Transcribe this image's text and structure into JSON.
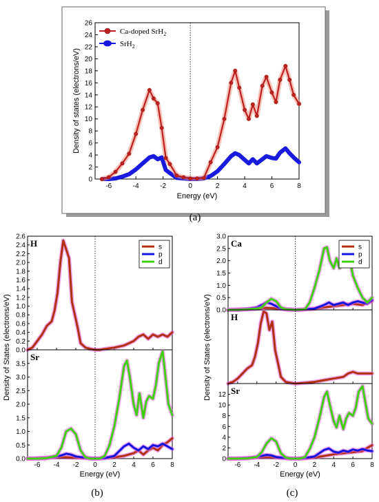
{
  "captions": {
    "a": "(a)",
    "b": "(b)",
    "c": "(c)"
  },
  "colors": {
    "ca_doped": "#c0201e",
    "ca_doped_halo": "#f09080",
    "srh2": "#1a1adf",
    "s": "#b03010",
    "p": "#1414e0",
    "d": "#40d010",
    "halo": "#e060e0"
  },
  "chart_data": [
    {
      "id": "a",
      "type": "line",
      "xlabel": "Energy (eV)",
      "ylabel": "Density of states (electrons/eV)",
      "xlim": [
        -7,
        8
      ],
      "ylim": [
        0,
        26
      ],
      "xticks": [
        -6,
        -4,
        -2,
        0,
        2,
        4,
        6,
        8
      ],
      "yticks": [
        0,
        2,
        4,
        6,
        8,
        10,
        12,
        14,
        16,
        18,
        20,
        22,
        24,
        26
      ],
      "fermi_line": 0,
      "legend_position": "top-left",
      "series": [
        {
          "name": "Ca-doped SrH",
          "name_sub": "2",
          "color_key": "ca_doped",
          "x": [
            -6.5,
            -6,
            -5.5,
            -5,
            -4.5,
            -4,
            -3.5,
            -3,
            -2.7,
            -2.4,
            -2.1,
            -1.8,
            -1.5,
            -1,
            -0.5,
            0,
            0.5,
            1,
            1.5,
            2,
            2.5,
            3,
            3.3,
            3.6,
            4,
            4.3,
            4.6,
            4.9,
            5.3,
            5.6,
            6,
            6.3,
            6.6,
            7,
            7.3,
            7.6,
            8
          ],
          "y": [
            0,
            0.3,
            1.2,
            2.6,
            4.2,
            7.5,
            11.5,
            14.8,
            13.4,
            12.6,
            8.5,
            3.5,
            2.5,
            0.6,
            0.3,
            0.1,
            0.1,
            0.2,
            2.8,
            5.3,
            10,
            16,
            18,
            15.2,
            11.5,
            10,
            12.4,
            10.5,
            15.5,
            17,
            14.4,
            12.8,
            16.5,
            18.8,
            16.5,
            14,
            12.5
          ]
        },
        {
          "name": "SrH",
          "name_sub": "2",
          "color_key": "srh2",
          "x": [
            -6.5,
            -6,
            -5.5,
            -5,
            -4.5,
            -4,
            -3.5,
            -3,
            -2.7,
            -2.4,
            -2.1,
            -1.8,
            -1.5,
            -1,
            -0.5,
            0,
            0.5,
            1,
            1.5,
            2,
            2.5,
            3,
            3.3,
            3.6,
            4,
            4.3,
            4.6,
            4.9,
            5.3,
            5.6,
            6,
            6.3,
            6.6,
            7,
            7.3,
            7.6,
            8
          ],
          "y": [
            0,
            0,
            0.1,
            0.4,
            0.8,
            1.6,
            2.6,
            3.6,
            3.8,
            3.3,
            3.6,
            1.5,
            1,
            0.2,
            0.1,
            0,
            0,
            0.1,
            0.5,
            1.3,
            2.5,
            3.8,
            4.3,
            4,
            3.2,
            2.6,
            3.3,
            2.6,
            3.3,
            3.8,
            3.5,
            3.4,
            4.4,
            5.1,
            4.3,
            3.6,
            2.8
          ]
        }
      ]
    },
    {
      "id": "b",
      "type": "line",
      "xlabel": "Energy (eV)",
      "ylabel": "Density of States (electrons/eV)",
      "xlim": [
        -7,
        8
      ],
      "xticks": [
        -6,
        -4,
        -2,
        0,
        2,
        4,
        6,
        8
      ],
      "fermi_line": 0,
      "legend_position": "top-right",
      "legend": [
        "s",
        "p",
        "d"
      ],
      "subpanels": [
        {
          "element": "H",
          "ylim": [
            0,
            2.6
          ],
          "yticks": [
            0,
            0.2,
            0.4,
            0.6,
            0.8,
            1.0,
            1.2,
            1.4,
            1.6,
            1.8,
            2.0,
            2.2,
            2.4,
            2.6
          ],
          "series": [
            {
              "name": "s",
              "color_key": "s",
              "x": [
                -7,
                -6.5,
                -6,
                -5.5,
                -5,
                -4.5,
                -4.2,
                -3.9,
                -3.6,
                -3.3,
                -3,
                -2.7,
                -2.4,
                -2.1,
                -1.8,
                -1.5,
                -1,
                -0.5,
                0,
                0.5,
                1,
                2,
                3,
                4,
                4.5,
                5,
                5.5,
                6,
                6.5,
                7,
                7.5,
                8
              ],
              "y": [
                0,
                0.05,
                0.2,
                0.35,
                0.55,
                0.65,
                0.9,
                1.3,
                2.0,
                2.5,
                2.3,
                2.1,
                1.1,
                0.8,
                0.5,
                0.15,
                0.05,
                0.02,
                0,
                0,
                0.02,
                0.05,
                0.1,
                0.2,
                0.3,
                0.35,
                0.25,
                0.35,
                0.3,
                0.35,
                0.3,
                0.4
              ]
            }
          ]
        },
        {
          "element": "Sr",
          "ylim": [
            0,
            4.0
          ],
          "yticks": [
            0,
            0.5,
            1.0,
            1.5,
            2.0,
            2.5,
            3.0,
            3.5
          ],
          "series": [
            {
              "name": "s",
              "color_key": "s",
              "x": [
                -7,
                -6,
                -5,
                -4,
                -3,
                -2,
                -1,
                0,
                1,
                2,
                3,
                4,
                4.5,
                5,
                5.5,
                6,
                6.5,
                7,
                7.5,
                8
              ],
              "y": [
                0,
                0.02,
                0.03,
                0.05,
                0.05,
                0.03,
                0.02,
                0,
                0.02,
                0.05,
                0.1,
                0.2,
                0.3,
                0.15,
                0.3,
                0.4,
                0.3,
                0.5,
                0.6,
                0.75
              ]
            },
            {
              "name": "p",
              "color_key": "p",
              "x": [
                -7,
                -6,
                -5,
                -4,
                -3.5,
                -3,
                -2.5,
                -2,
                -1,
                0,
                1,
                2,
                3,
                3.5,
                4,
                4.5,
                5,
                5.5,
                6,
                6.5,
                7,
                7.5,
                8
              ],
              "y": [
                0,
                0,
                0.02,
                0.08,
                0.12,
                0.18,
                0.15,
                0.08,
                0.03,
                0,
                0.02,
                0.1,
                0.45,
                0.55,
                0.4,
                0.3,
                0.45,
                0.35,
                0.5,
                0.45,
                0.55,
                0.45,
                0.35
              ]
            },
            {
              "name": "d",
              "color_key": "d",
              "x": [
                -7,
                -6,
                -5,
                -4,
                -3.5,
                -3,
                -2.5,
                -2,
                -1.5,
                -1,
                -0.5,
                0,
                0.5,
                1,
                1.5,
                2,
                2.5,
                3,
                3.3,
                3.6,
                4,
                4.3,
                4.6,
                5,
                5.3,
                5.6,
                6,
                6.3,
                6.6,
                7,
                7.3,
                7.6,
                8
              ],
              "y": [
                0,
                0,
                0.02,
                0.1,
                0.4,
                1.0,
                1.1,
                0.9,
                0.3,
                0.05,
                0,
                0,
                0,
                0.1,
                0.5,
                1.2,
                2.2,
                3.4,
                3.6,
                3.0,
                2.0,
                1.6,
                2.4,
                1.5,
                2.1,
                2.3,
                2.2,
                2.7,
                3.5,
                3.95,
                3.0,
                2.0,
                1.6
              ]
            }
          ]
        }
      ]
    },
    {
      "id": "c",
      "type": "line",
      "xlabel": "Energy (eV)",
      "ylabel": "Density of States (electrons/eV)",
      "xlim": [
        -7,
        8
      ],
      "xticks": [
        -6,
        -4,
        -2,
        0,
        2,
        4,
        6,
        8
      ],
      "fermi_line": 0,
      "legend_position": "top-right",
      "legend": [
        "s",
        "p",
        "d"
      ],
      "subpanels": [
        {
          "element": "Ca",
          "ylim": [
            0,
            3.0
          ],
          "yticks": [
            0,
            0.5,
            1.0,
            1.5,
            2.0,
            2.5,
            3.0
          ],
          "series": [
            {
              "name": "s",
              "color_key": "s",
              "x": [
                -7,
                -6,
                -5,
                -4,
                -3,
                -2,
                -1,
                0,
                1,
                2,
                3,
                4,
                5,
                6,
                7,
                7.5,
                8
              ],
              "y": [
                0,
                0.02,
                0.03,
                0.05,
                0.08,
                0.06,
                0.03,
                0,
                0.02,
                0.05,
                0.1,
                0.15,
                0.2,
                0.25,
                0.2,
                0.3,
                0.35
              ]
            },
            {
              "name": "p",
              "color_key": "p",
              "x": [
                -7,
                -6,
                -5,
                -4,
                -3.5,
                -3,
                -2.5,
                -2,
                -1.5,
                -1,
                0,
                1,
                2,
                3,
                3.5,
                4,
                4.5,
                5,
                5.5,
                6,
                6.5,
                7,
                7.5,
                8
              ],
              "y": [
                0,
                0,
                0.03,
                0.1,
                0.2,
                0.3,
                0.25,
                0.15,
                0.05,
                0.02,
                0,
                0.02,
                0.05,
                0.2,
                0.3,
                0.2,
                0.25,
                0.3,
                0.2,
                0.3,
                0.35,
                0.3,
                0.25,
                0.4
              ]
            },
            {
              "name": "d",
              "color_key": "d",
              "x": [
                -7,
                -6,
                -5,
                -4,
                -3.5,
                -3,
                -2.5,
                -2,
                -1.5,
                -1,
                0,
                1,
                1.5,
                2,
                2.5,
                3,
                3.3,
                3.6,
                4,
                4.3,
                4.6,
                5,
                5.3,
                5.6,
                6,
                6.5,
                7,
                7.5,
                8
              ],
              "y": [
                0,
                0,
                0.02,
                0.05,
                0.1,
                0.3,
                0.45,
                0.35,
                0.1,
                0.02,
                0,
                0.02,
                0.3,
                0.9,
                1.6,
                2.5,
                2.55,
                2.0,
                1.7,
                2.1,
                1.7,
                1.9,
                2.3,
                2.2,
                1.4,
                0.9,
                0.5,
                0.3,
                0.5
              ]
            }
          ]
        },
        {
          "element": "H",
          "ylim": [
            0,
            2.2
          ],
          "series": [
            {
              "name": "s",
              "color_key": "s",
              "x": [
                -7,
                -6.5,
                -6,
                -5.5,
                -5,
                -4.5,
                -4.2,
                -3.9,
                -3.6,
                -3.3,
                -3,
                -2.7,
                -2.4,
                -2.1,
                -1.8,
                -1.5,
                -1,
                -0.5,
                0,
                1,
                2,
                3,
                4,
                5,
                5.5,
                6,
                6.5,
                7,
                7.5,
                8
              ],
              "y": [
                0,
                0.05,
                0.15,
                0.3,
                0.45,
                0.55,
                0.8,
                1.2,
                1.8,
                2.15,
                2.1,
                1.6,
                1.85,
                1.0,
                0.6,
                0.2,
                0.05,
                0.02,
                0,
                0.02,
                0.05,
                0.1,
                0.15,
                0.2,
                0.3,
                0.35,
                0.3,
                0.3,
                0.3,
                0.3
              ]
            }
          ]
        },
        {
          "element": "Sr",
          "ylim": [
            0,
            14
          ],
          "yticks": [
            0,
            2,
            4,
            6,
            8,
            10,
            12
          ],
          "series": [
            {
              "name": "s",
              "color_key": "s",
              "x": [
                -7,
                -6,
                -5,
                -4,
                -3,
                -2,
                -1,
                0,
                1,
                2,
                3,
                4,
                5,
                6,
                7,
                7.5,
                8
              ],
              "y": [
                0,
                0.05,
                0.1,
                0.2,
                0.3,
                0.2,
                0.05,
                0,
                0.05,
                0.2,
                0.5,
                0.8,
                1.0,
                1.2,
                1.4,
                2.0,
                2.5
              ]
            },
            {
              "name": "p",
              "color_key": "p",
              "x": [
                -7,
                -6,
                -5,
                -4,
                -3.5,
                -3,
                -2.5,
                -2,
                -1,
                0,
                1,
                2,
                3,
                3.5,
                4,
                4.5,
                5,
                5.5,
                6,
                6.5,
                7,
                7.5,
                8
              ],
              "y": [
                0,
                0,
                0.1,
                0.3,
                0.5,
                0.7,
                0.6,
                0.3,
                0.1,
                0,
                0.1,
                0.4,
                1.6,
                1.9,
                1.3,
                1.1,
                1.5,
                1.3,
                1.7,
                1.5,
                1.8,
                1.5,
                1.4
              ]
            },
            {
              "name": "d",
              "color_key": "d",
              "x": [
                -7,
                -6,
                -5,
                -4,
                -3.5,
                -3,
                -2.5,
                -2,
                -1.5,
                -1,
                -0.5,
                0,
                0.5,
                1,
                1.5,
                2,
                2.5,
                3,
                3.3,
                3.6,
                4,
                4.3,
                4.6,
                5,
                5.3,
                5.6,
                6,
                6.3,
                6.6,
                7,
                7.3,
                7.6,
                8
              ],
              "y": [
                0,
                0,
                0.05,
                0.3,
                1.2,
                2.8,
                3.8,
                3.2,
                1.0,
                0.2,
                0,
                0,
                0,
                0.3,
                1.8,
                4.0,
                7.5,
                11.5,
                12.5,
                10.0,
                7.0,
                5.8,
                8.0,
                5.5,
                7.5,
                8.5,
                8.0,
                9.5,
                12.5,
                13.5,
                10.5,
                7.5,
                6.5
              ]
            }
          ]
        }
      ]
    }
  ]
}
